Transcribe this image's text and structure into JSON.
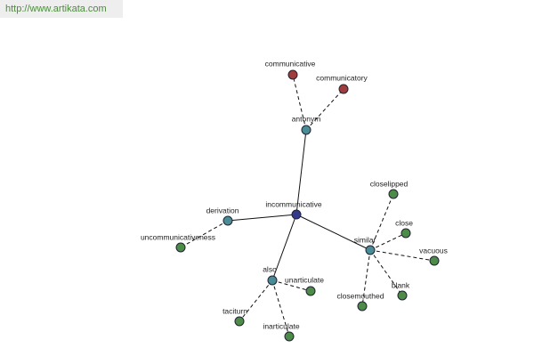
{
  "header": {
    "url": "http://www.artikata.com"
  },
  "nodes": [
    {
      "label": "incommunicative"
    },
    {
      "label": "antonym"
    },
    {
      "label": "communicative"
    },
    {
      "label": "communicatory"
    },
    {
      "label": "derivation"
    },
    {
      "label": "uncommunicativeness"
    },
    {
      "label": "similar"
    },
    {
      "label": "closelipped"
    },
    {
      "label": "close"
    },
    {
      "label": "vacuous"
    },
    {
      "label": "blank"
    },
    {
      "label": "closemouthed"
    },
    {
      "label": "also"
    },
    {
      "label": "unarticulate"
    },
    {
      "label": "taciturn"
    },
    {
      "label": "inarticulate"
    }
  ]
}
